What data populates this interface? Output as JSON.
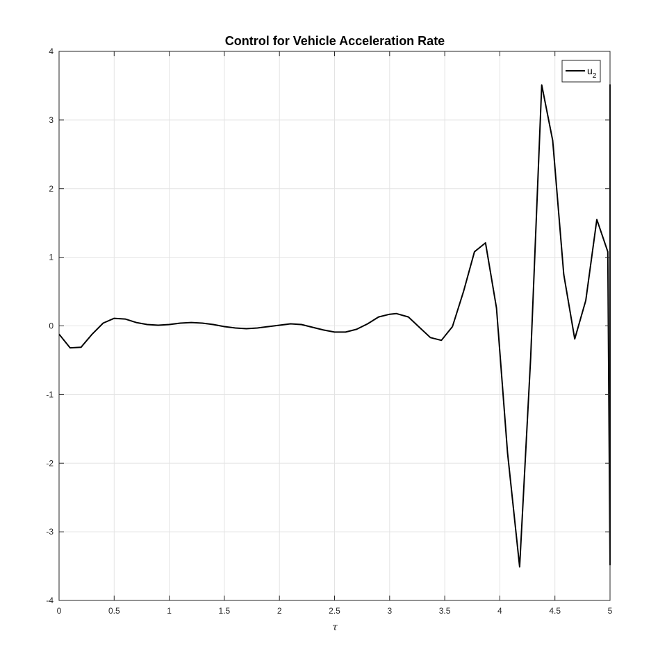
{
  "chart_data": {
    "type": "line",
    "title": "Control for Vehicle Acceleration Rate",
    "xlabel": "τ",
    "ylabel": "",
    "xlim": [
      0,
      5
    ],
    "ylim": [
      -4,
      4
    ],
    "xticks": [
      0,
      0.5,
      1,
      1.5,
      2,
      2.5,
      3,
      3.5,
      4,
      4.5,
      5
    ],
    "xtick_labels": [
      "0",
      "0.5",
      "1",
      "1.5",
      "2",
      "2.5",
      "3",
      "3.5",
      "4",
      "4.5",
      "5"
    ],
    "yticks": [
      -4,
      -3,
      -2,
      -1,
      0,
      1,
      2,
      3,
      4
    ],
    "ytick_labels": [
      "-4",
      "-3",
      "-2",
      "-1",
      "0",
      "1",
      "2",
      "3",
      "4"
    ],
    "grid": true,
    "legend_position": "top-right",
    "series": [
      {
        "name": "u",
        "name_subscript": "2",
        "color": "#000000",
        "x": [
          0,
          0.1,
          0.2,
          0.3,
          0.4,
          0.5,
          0.6,
          0.7,
          0.8,
          0.9,
          1.0,
          1.1,
          1.2,
          1.3,
          1.4,
          1.5,
          1.6,
          1.7,
          1.8,
          1.9,
          2.0,
          2.1,
          2.2,
          2.3,
          2.4,
          2.5,
          2.6,
          2.7,
          2.8,
          2.9,
          3.0,
          3.06,
          3.17,
          3.27,
          3.37,
          3.47,
          3.57,
          3.67,
          3.77,
          3.87,
          3.97,
          4.07,
          4.18,
          4.28,
          4.38,
          4.48,
          4.58,
          4.68,
          4.78,
          4.88,
          4.98,
          5.0,
          5.0
        ],
        "values": [
          -0.12,
          -0.32,
          -0.31,
          -0.12,
          0.04,
          0.11,
          0.1,
          0.05,
          0.02,
          0.01,
          0.02,
          0.04,
          0.05,
          0.04,
          0.02,
          -0.01,
          -0.03,
          -0.04,
          -0.03,
          -0.01,
          0.01,
          0.03,
          0.02,
          -0.02,
          -0.06,
          -0.09,
          -0.09,
          -0.05,
          0.03,
          0.13,
          0.17,
          0.18,
          0.13,
          -0.02,
          -0.17,
          -0.21,
          -0.01,
          0.5,
          1.08,
          1.21,
          0.26,
          -1.85,
          -3.51,
          -0.46,
          3.51,
          2.7,
          0.75,
          -0.19,
          0.37,
          1.55,
          1.08,
          -3.48,
          3.52
        ]
      }
    ]
  }
}
